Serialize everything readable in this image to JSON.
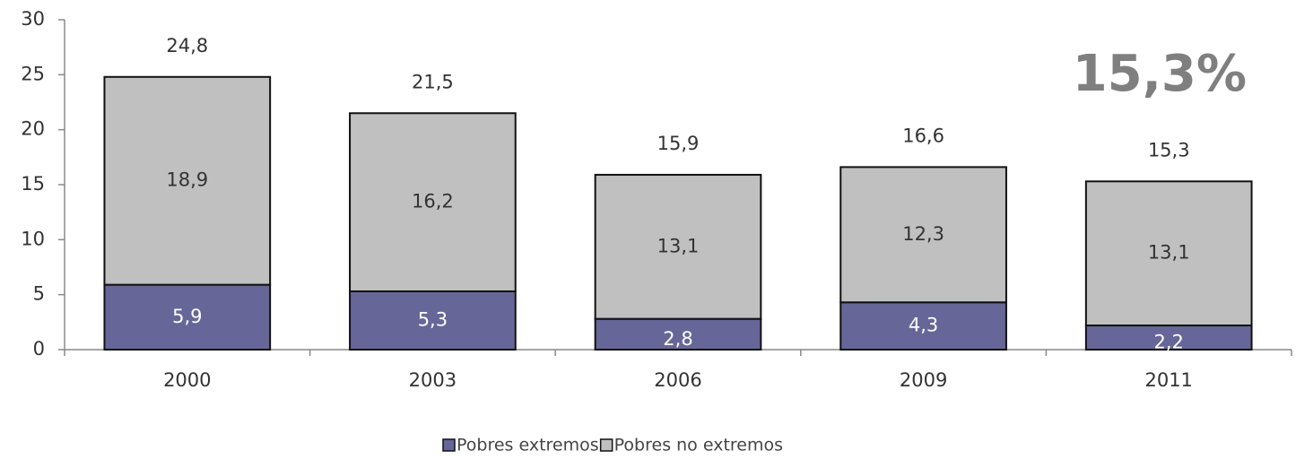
{
  "chart_data": {
    "type": "stacked-bar",
    "categories": [
      "2000",
      "2003",
      "2006",
      "2009",
      "2011"
    ],
    "series": [
      {
        "name": "Pobres extremos",
        "color": "#666699",
        "values": [
          5.9,
          5.3,
          2.8,
          4.3,
          2.2
        ],
        "value_labels": [
          "5,9",
          "5,3",
          "2,8",
          "4,3",
          "2,2"
        ]
      },
      {
        "name": "Pobres no extremos",
        "color": "#c0c0c0",
        "values": [
          18.9,
          16.2,
          13.1,
          12.3,
          13.1
        ],
        "value_labels": [
          "18,9",
          "16,2",
          "13,1",
          "12,3",
          "13,1"
        ]
      }
    ],
    "totals": {
      "values": [
        24.8,
        21.5,
        15.9,
        16.6,
        15.3
      ],
      "value_labels": [
        "24,8",
        "21,5",
        "15,9",
        "16,6",
        "15,3"
      ]
    },
    "annotation": "15,3%",
    "ylim": [
      0,
      30
    ],
    "yticks": [
      0,
      5,
      10,
      15,
      20,
      25,
      30
    ],
    "legend": "bottom"
  }
}
